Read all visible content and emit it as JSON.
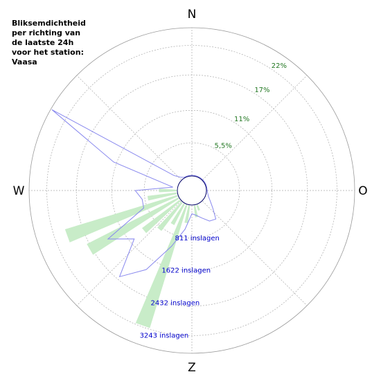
{
  "chart_data": {
    "type": "polar",
    "title": "Bliksemdichtheid per richting van de laatste 24h voor het station: Vaasa",
    "direction_labels": [
      "N",
      "O",
      "Z",
      "W"
    ],
    "x": [
      0,
      10,
      20,
      30,
      40,
      50,
      60,
      70,
      80,
      90,
      100,
      110,
      120,
      130,
      140,
      150,
      160,
      170,
      180,
      190,
      200,
      210,
      220,
      230,
      240,
      250,
      260,
      270,
      280,
      290,
      300,
      310,
      320,
      330,
      340,
      350
    ],
    "series": [
      {
        "name": "percentage",
        "color": "#c8ecc8",
        "values": [
          0,
          0,
          0,
          0,
          0,
          0,
          0,
          0,
          0,
          0,
          0,
          0,
          0,
          0,
          0,
          0,
          1,
          2,
          0,
          3,
          21.8,
          4,
          6,
          8,
          17.4,
          19.9,
          5,
          3,
          0,
          0,
          0,
          0,
          0,
          0,
          0,
          0
        ]
      },
      {
        "name": "inslagen",
        "color": "#8888ee",
        "axis": "y2",
        "values": [
          0,
          0,
          0,
          0,
          0,
          0,
          0,
          0,
          0,
          0,
          20,
          60,
          150,
          300,
          550,
          500,
          350,
          250,
          200,
          600,
          1100,
          1900,
          2430,
          1500,
          2040,
          900,
          880,
          1035,
          100,
          1700,
          3658,
          200,
          50,
          0,
          0,
          0
        ]
      }
    ],
    "ylim": [
      0,
      25
    ],
    "yticks": [
      {
        "value": 5.5,
        "label": "5,5%"
      },
      {
        "value": 11,
        "label": "11%"
      },
      {
        "value": 17,
        "label": "17%"
      },
      {
        "value": 22,
        "label": "22%"
      }
    ],
    "y2lim": [
      0,
      3686
    ],
    "y2ticks": [
      {
        "value": 811,
        "label": "811 inslagen"
      },
      {
        "value": 1622,
        "label": "1622 inslagen"
      },
      {
        "value": 2432,
        "label": "2432 inslagen"
      },
      {
        "value": 3243,
        "label": "3243 inslagen"
      }
    ]
  }
}
